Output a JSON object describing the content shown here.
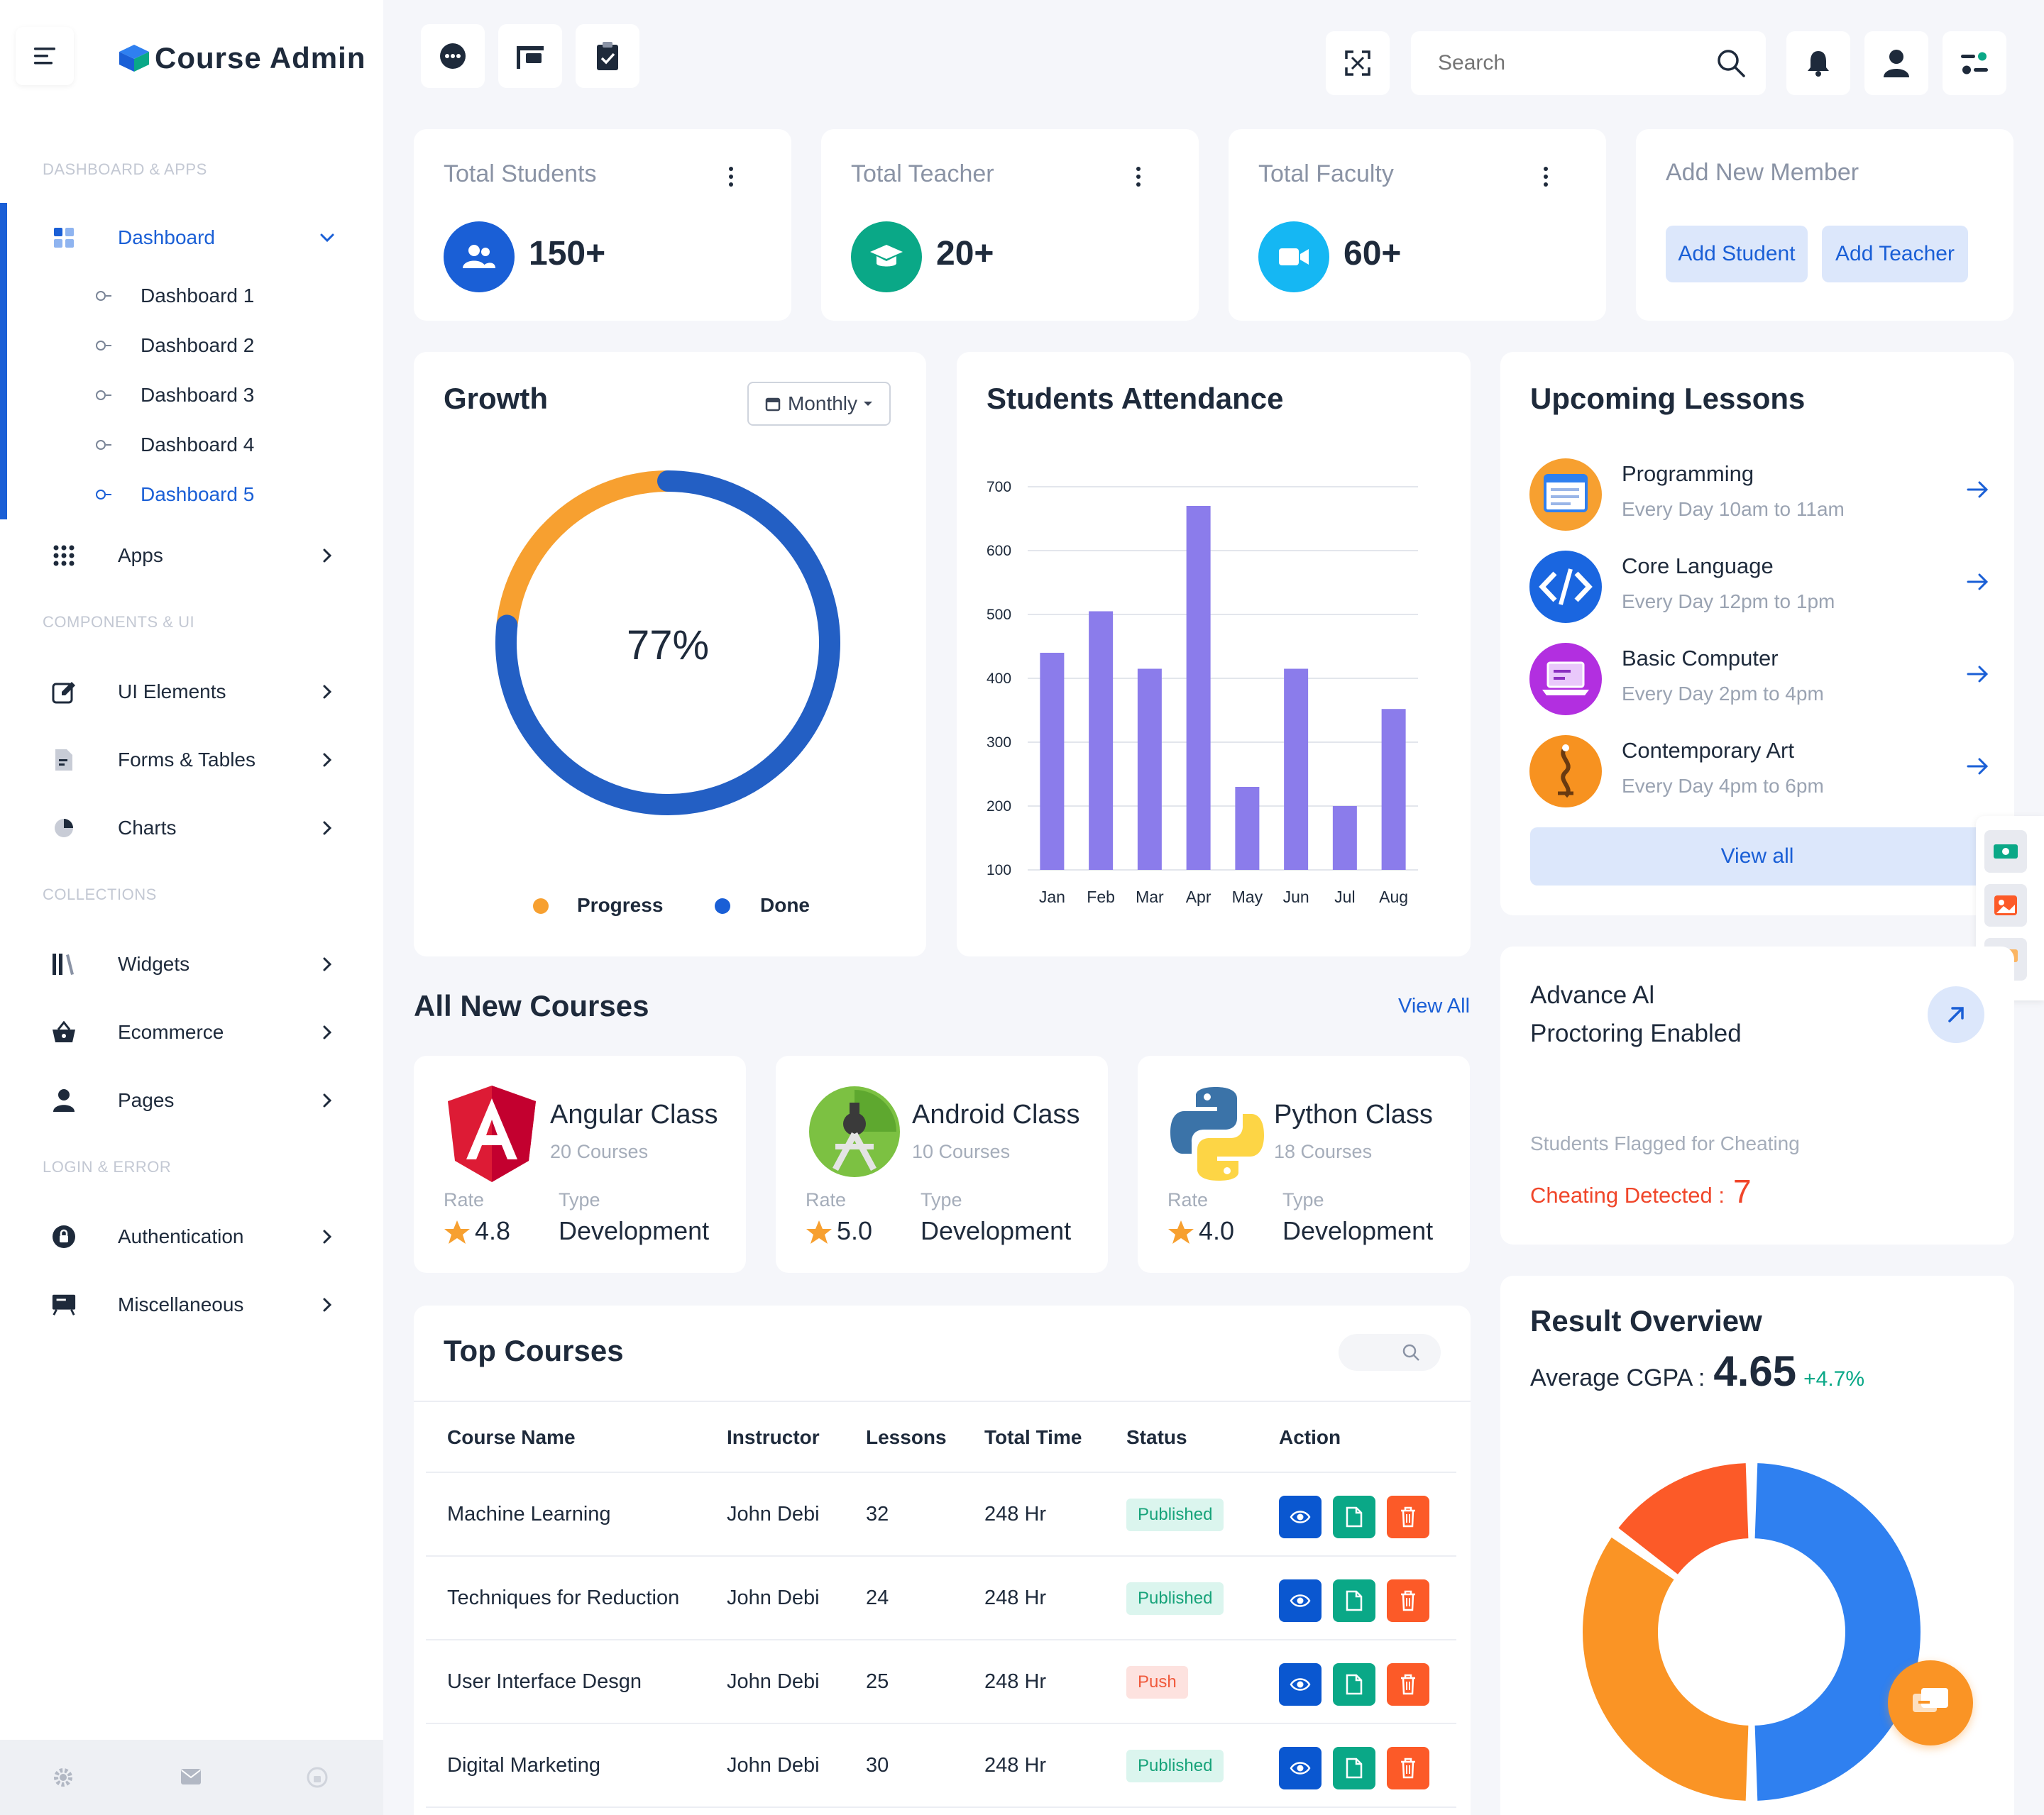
{
  "brand": {
    "name": "Course Admin"
  },
  "sidebar": {
    "sections": [
      "DASHBOARD & APPS",
      "COMPONENTS & UI",
      "COLLECTIONS",
      "LOGIN & ERROR"
    ],
    "dashboard": {
      "label": "Dashboard",
      "subitems": [
        "Dashboard 1",
        "Dashboard 2",
        "Dashboard 3",
        "Dashboard 4",
        "Dashboard 5"
      ],
      "active_sub": "Dashboard 5"
    },
    "items": {
      "apps": "Apps",
      "ui_elements": "UI Elements",
      "forms_tables": "Forms & Tables",
      "charts": "Charts",
      "widgets": "Widgets",
      "ecommerce": "Ecommerce",
      "pages": "Pages",
      "authentication": "Authentication",
      "miscellaneous": "Miscellaneous"
    },
    "footer_icons": [
      "settings-icon",
      "mail-icon",
      "lock-icon"
    ]
  },
  "topbar": {
    "search_placeholder": "Search"
  },
  "stats": [
    {
      "title": "Total Students",
      "value": "150+",
      "color": "#1a5fd6",
      "icon": "users-icon"
    },
    {
      "title": "Total Teacher",
      "value": "20+",
      "color": "#0aa887",
      "icon": "graduation-cap-icon"
    },
    {
      "title": "Total Faculty",
      "value": "60+",
      "color": "#15b7f3",
      "icon": "video-icon"
    }
  ],
  "add_member": {
    "title": "Add New Member",
    "add_student": "Add Student",
    "add_teacher": "Add Teacher"
  },
  "growth": {
    "title": "Growth",
    "period": "Monthly",
    "percent_label": "77%",
    "percent": 77,
    "progress_share": 23,
    "legend": [
      "Progress",
      "Done"
    ],
    "colors": {
      "progress": "#f7a030",
      "done": "#235fc4"
    }
  },
  "attendance": {
    "title": "Students Attendance",
    "chart_data": {
      "type": "bar",
      "categories": [
        "Jan",
        "Feb",
        "Mar",
        "Apr",
        "May",
        "Jun",
        "Jul",
        "Aug"
      ],
      "values": [
        440,
        505,
        415,
        670,
        230,
        415,
        200,
        352
      ],
      "yticks": [
        100,
        200,
        300,
        400,
        500,
        600,
        700
      ],
      "ylim": [
        100,
        700
      ],
      "color": "#8b7ceb",
      "grid": true
    }
  },
  "lessons": {
    "title": "Upcoming Lessons",
    "items": [
      {
        "name": "Programming",
        "time": "Every Day 10am to 11am"
      },
      {
        "name": "Core Language",
        "time": "Every Day 12pm to 1pm"
      },
      {
        "name": "Basic Computer",
        "time": "Every Day 2pm to 4pm"
      },
      {
        "name": "Contemporary Art",
        "time": "Every Day 4pm to 6pm"
      }
    ],
    "view_all": "View all"
  },
  "new_courses": {
    "title": "All New Courses",
    "view_all": "View All",
    "rate_label": "Rate",
    "type_label": "Type",
    "items": [
      {
        "name": "Angular Class",
        "count": "20 Courses",
        "rate": "4.8",
        "type": "Development"
      },
      {
        "name": "Android Class",
        "count": "10 Courses",
        "rate": "5.0",
        "type": "Development"
      },
      {
        "name": "Python Class",
        "count": "18 Courses",
        "rate": "4.0",
        "type": "Development"
      }
    ]
  },
  "proctoring": {
    "title_line1": "Advance Al",
    "title_line2": "Proctoring Enabled",
    "subtitle": "Students Flagged for Cheating",
    "detected_label": "Cheating Detected :",
    "detected_value": "7"
  },
  "top_courses": {
    "title": "Top Courses",
    "columns": [
      "Course Name",
      "Instructor",
      "Lessons",
      "Total Time",
      "Status",
      "Action"
    ],
    "rows": [
      {
        "name": "Machine Learning",
        "instructor": "John Debi",
        "lessons": "32",
        "time": "248 Hr",
        "status": "Published"
      },
      {
        "name": "Techniques for Reduction",
        "instructor": "John Debi",
        "lessons": "24",
        "time": "248 Hr",
        "status": "Published"
      },
      {
        "name": "User Interface Desgn",
        "instructor": "John Debi",
        "lessons": "25",
        "time": "248 Hr",
        "status": "Push"
      },
      {
        "name": "Digital Marketing",
        "instructor": "John Debi",
        "lessons": "30",
        "time": "248 Hr",
        "status": "Published"
      }
    ]
  },
  "result": {
    "title": "Result Overview",
    "cgpa_label": "Average CGPA :",
    "cgpa_value": "4.65",
    "change": "+4.7%",
    "chart_data": {
      "type": "pie",
      "values": [
        50,
        35,
        15
      ],
      "colors": [
        "#2f80f0",
        "#fa9425",
        "#fc5a28"
      ]
    }
  }
}
